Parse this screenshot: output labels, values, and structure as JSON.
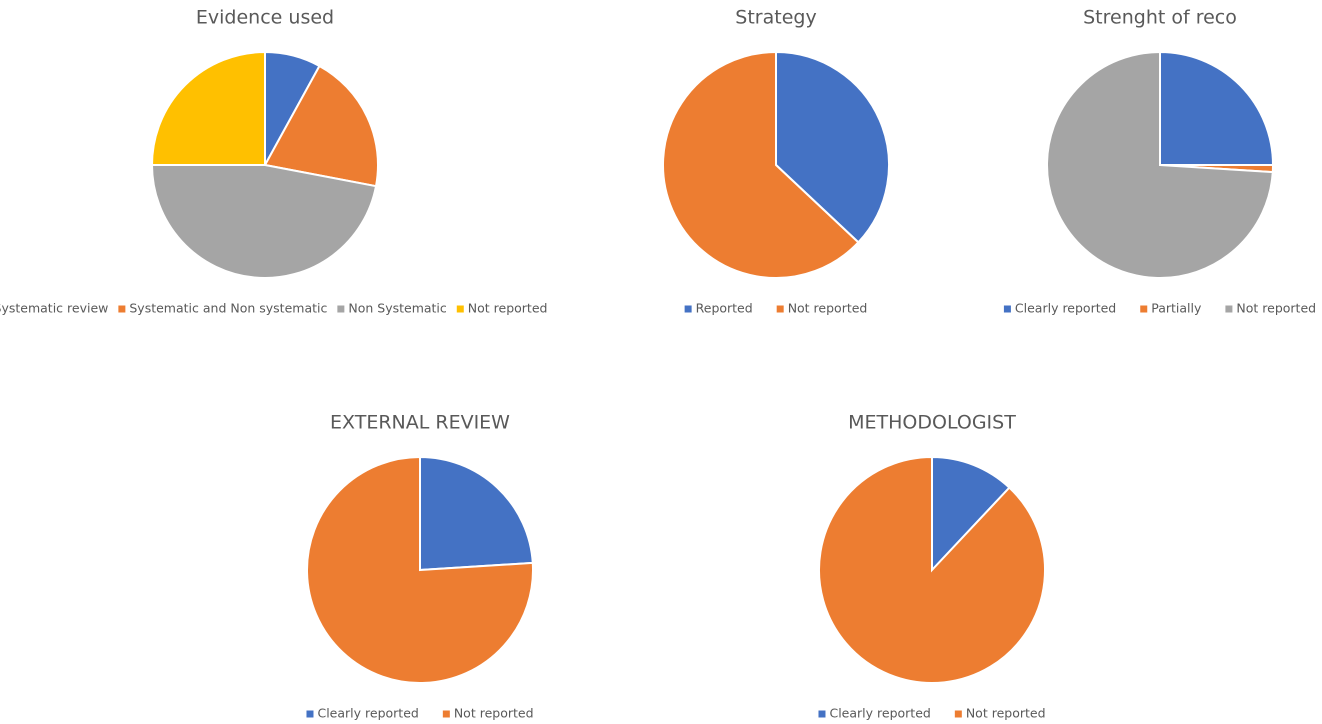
{
  "chart_data": [
    {
      "type": "pie",
      "title": "Evidence used",
      "categories": [
        "Systematic review",
        "Systematic and Non systematic",
        "Non Systematic",
        "Not reported"
      ],
      "values": [
        8,
        20,
        47,
        25
      ],
      "colors": [
        "#4472c4",
        "#ed7d31",
        "#a5a5a5",
        "#ffc000"
      ]
    },
    {
      "type": "pie",
      "title": "Strategy",
      "categories": [
        "Reported",
        "Not reported"
      ],
      "values": [
        37,
        63
      ],
      "colors": [
        "#4472c4",
        "#ed7d31"
      ]
    },
    {
      "type": "pie",
      "title": "Strenght of reco",
      "categories": [
        "Clearly reported",
        "Partially",
        "Not reported"
      ],
      "values": [
        25,
        1,
        74
      ],
      "colors": [
        "#4472c4",
        "#ed7d31",
        "#a5a5a5"
      ]
    },
    {
      "type": "pie",
      "title": "EXTERNAL REVIEW",
      "categories": [
        "Clearly reported",
        "Not reported"
      ],
      "values": [
        24,
        76
      ],
      "colors": [
        "#4472c4",
        "#ed7d31"
      ]
    },
    {
      "type": "pie",
      "title": "METHODOLOGIST",
      "categories": [
        "Clearly reported",
        "Not reported"
      ],
      "values": [
        12,
        88
      ],
      "colors": [
        "#4472c4",
        "#ed7d31"
      ]
    }
  ]
}
